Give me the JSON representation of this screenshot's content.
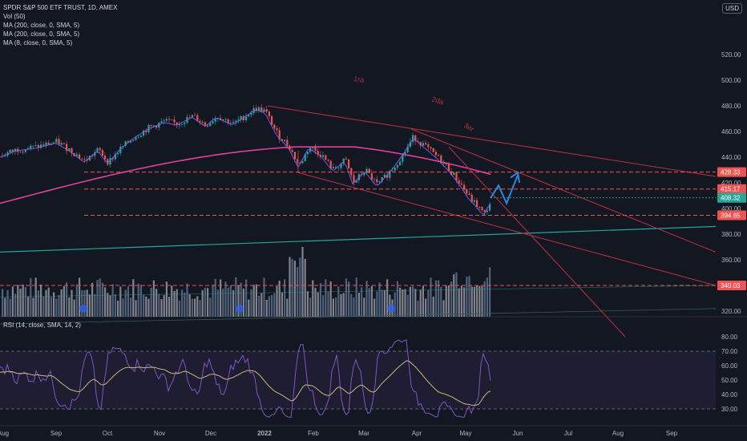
{
  "header": {
    "symbol_line": "SPDR S&P 500 ETF TRUST, 1D, AMEX",
    "indicators": [
      "Vol (50)",
      "MA (200, close, 0, SMA, 5)",
      "MA (200, close, 0, SMA, 5)",
      "MA (8, close, 0, SMA, 5)"
    ],
    "currency": "USD"
  },
  "rsi_pane": {
    "title": "RSI (14, close, SMA, 14, 2)"
  },
  "colors": {
    "background": "#131722",
    "up": "#26a69a",
    "down": "#ef5350",
    "ma200": "#e040a0",
    "ma_long": "#26a69a",
    "ma8": "#7b61ff",
    "trendline": "#b03040",
    "projection": "#2e86de",
    "rsi_line": "#7e57c2",
    "rsi_ma": "#c8b97a"
  },
  "chart_data": [
    {
      "type": "candlestick",
      "title": "SPDR S&P 500 ETF TRUST, 1D, AMEX",
      "x_ticks": [
        "Aug",
        "Sep",
        "Oct",
        "Nov",
        "Dec",
        "2022",
        "Feb",
        "Mar",
        "Apr",
        "May",
        "Jun",
        "Jul",
        "Aug",
        "Sep"
      ],
      "y_ticks": [
        320.0,
        340.0,
        360.0,
        380.0,
        400.0,
        420.0,
        440.0,
        460.0,
        480.0,
        500.0,
        520.0
      ],
      "ylim": [
        305,
        525
      ],
      "price_labels": [
        {
          "value": "428.33",
          "kind": "level"
        },
        {
          "value": "415.17",
          "kind": "level"
        },
        {
          "value": "408.32",
          "kind": "last"
        },
        {
          "value": "394.65",
          "kind": "level"
        },
        {
          "value": "340.03",
          "kind": "level"
        }
      ],
      "trendline_labels": [
        "1ra",
        "2da",
        "3er"
      ],
      "close_series_by_month": [
        {
          "month": "Aug",
          "close": 441
        },
        {
          "month": "Sep",
          "close": 445
        },
        {
          "month": "Oct",
          "close": 436
        },
        {
          "month": "Nov",
          "close": 466
        },
        {
          "month": "Dec",
          "close": 470
        },
        {
          "month": "2022",
          "close": 476
        },
        {
          "month": "Feb",
          "close": 433
        },
        {
          "month": "Mar",
          "close": 428
        },
        {
          "month": "Apr",
          "close": 456
        },
        {
          "month": "May",
          "close": 400
        }
      ]
    },
    {
      "type": "line",
      "title": "RSI (14, close, SMA, 14, 2)",
      "y_ticks": [
        30.0,
        40.0,
        50.0,
        60.0,
        70.0,
        80.0
      ],
      "ylim": [
        25,
        82
      ],
      "bands": [
        30,
        70
      ]
    }
  ]
}
